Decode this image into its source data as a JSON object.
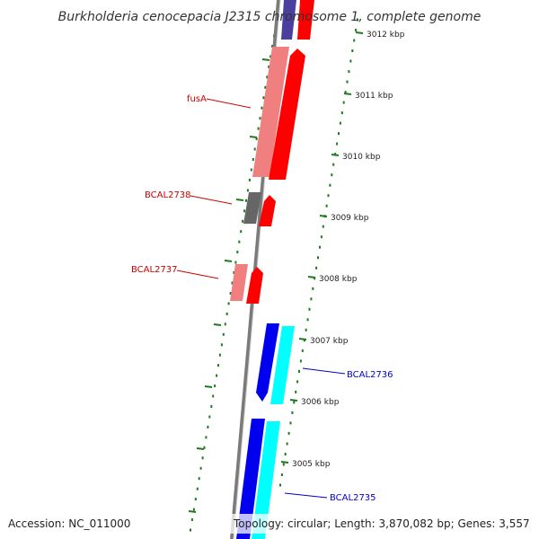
{
  "title": "Burkholderia cenocepacia J2315 chromosome 1, complete genome",
  "footer": {
    "accession": "Accession: NC_011000",
    "topology": "Topology: circular; Length: 3,870,082 bp; Genes: 3,557"
  },
  "ticks": [
    "3012 kbp",
    "3011 kbp",
    "3010 kbp",
    "3009 kbp",
    "3008 kbp",
    "3007 kbp",
    "3006 kbp",
    "3005 kbp"
  ],
  "genes": [
    {
      "label": "fusA",
      "color": "#cc0000"
    },
    {
      "label": "BCAL2738",
      "color": "#cc0000"
    },
    {
      "label": "BCAL2737",
      "color": "#cc0000"
    },
    {
      "label": "BCAL2736",
      "color": "#0000cc"
    },
    {
      "label": "BCAL2735",
      "color": "#0000cc"
    }
  ],
  "colors": {
    "backbone": "#777777",
    "forward_red": "#ff0000",
    "forward_pink": "#f08080",
    "dark_grey": "#666666",
    "blue": "#0000ee",
    "cyan": "#00ffff",
    "navy": "#4a3f9f",
    "tick_green": "#1e7a1e"
  }
}
